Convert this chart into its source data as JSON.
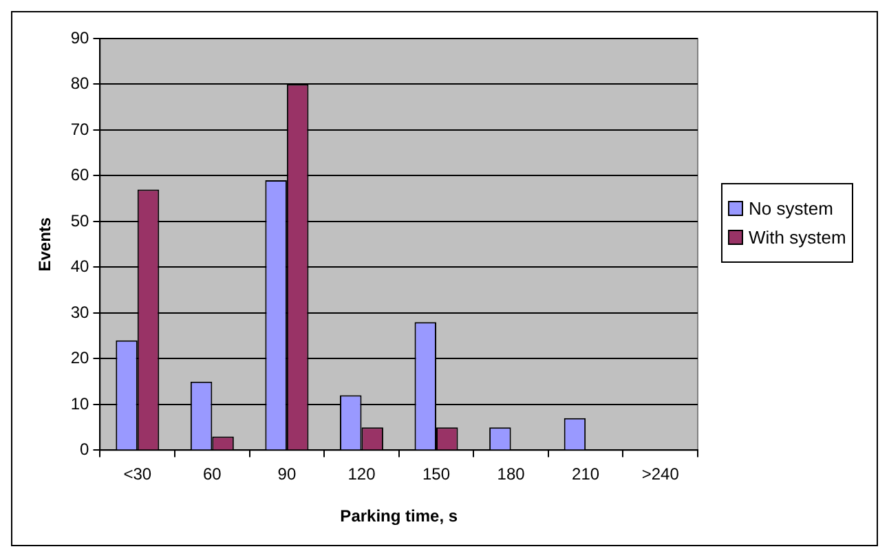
{
  "chart_data": {
    "type": "bar",
    "xlabel": "Parking time, s",
    "ylabel": "Events",
    "categories": [
      "<30",
      "60",
      "90",
      "120",
      "150",
      "180",
      "210",
      ">240"
    ],
    "series": [
      {
        "name": "No system",
        "color": "#9999ff",
        "values": [
          24,
          15,
          59,
          12,
          28,
          5,
          7,
          0
        ]
      },
      {
        "name": "With system",
        "color": "#993366",
        "values": [
          57,
          3,
          80,
          5,
          5,
          0,
          0,
          0
        ]
      }
    ],
    "ylim": [
      0,
      90
    ],
    "yticks": [
      0,
      10,
      20,
      30,
      40,
      50,
      60,
      70,
      80,
      90
    ],
    "grid": "y",
    "legend": "right"
  }
}
